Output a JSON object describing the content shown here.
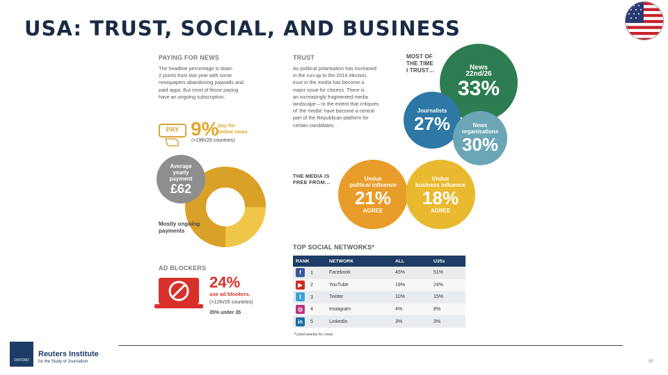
{
  "title": "USA: TRUST, SOCIAL, AND BUSINESS",
  "paying": {
    "heading": "PAYING FOR NEWS",
    "body": [
      "The headline percentage is down",
      "2 points from last year with some",
      "newspapers abandoning paywalls and",
      "paid apps. But most of those paying",
      "have an ongoing subscription."
    ],
    "pay_label": "PAY",
    "pct": "9%",
    "pct_caption": [
      "pay for",
      "online news"
    ],
    "rank": "(=19th/26 countries)",
    "avg_label": [
      "Average",
      "yearly",
      "payment"
    ],
    "avg_value": "£62",
    "ongoing_label": [
      "Mostly ongoing",
      "payments"
    ],
    "ongoing_fraction": 0.75
  },
  "adblock": {
    "heading": "AD BLOCKERS",
    "pct": "24%",
    "caption": "use ad blockers.",
    "rank": "(=12th/26 countries)",
    "under35": "35% under 35"
  },
  "trust": {
    "heading": "TRUST",
    "body": [
      "As political polarisation has increased",
      "in the run-up to the 2016 election,",
      "trust in the media has become a",
      "major issue for citizens. There is",
      "an increasingly fragmented media",
      "landscape – to the extent that critiques",
      "of 'the media' have become a central",
      "part of the Republican platform for",
      "certain candidates."
    ],
    "most_of_time": [
      "MOST OF",
      "THE TIME",
      "I TRUST…"
    ],
    "news": {
      "label": "News",
      "rank": "22nd/26",
      "pct": "33%"
    },
    "journalists": {
      "label": "Journalists",
      "pct": "27%"
    },
    "orgs": {
      "label": [
        "News",
        "organisations"
      ],
      "pct": "30%"
    },
    "free_from": [
      "THE MEDIA IS",
      "FREE FROM…"
    ],
    "political": {
      "label": [
        "Undue",
        "political influence"
      ],
      "pct": "21%",
      "agree": "AGREE"
    },
    "business": {
      "label": [
        "Undue",
        "business influence"
      ],
      "pct": "18%",
      "agree": "AGREE"
    }
  },
  "social": {
    "heading": "TOP SOCIAL NETWORKS*",
    "columns": [
      "RANK",
      "NETWORK",
      "ALL",
      "U35s"
    ],
    "rows": [
      {
        "rank": "1",
        "network": "Facebook",
        "all": "45%",
        "u35": "51%",
        "icon": "f",
        "color": "#3b5998"
      },
      {
        "rank": "2",
        "network": "YouTube",
        "all": "19%",
        "u35": "24%",
        "icon": "▶",
        "color": "#cc2b23"
      },
      {
        "rank": "3",
        "network": "Twitter",
        "all": "10%",
        "u35": "15%",
        "icon": "t",
        "color": "#3fa1d9"
      },
      {
        "rank": "4",
        "network": "Instagram",
        "all": "4%",
        "u35": "8%",
        "icon": "◎",
        "color": "#b8327e"
      },
      {
        "rank": "5",
        "network": "LinkedIn",
        "all": "3%",
        "u35": "3%",
        "icon": "in",
        "color": "#1a6aa1"
      }
    ],
    "footnote": "*Used weekly for news"
  },
  "footer": {
    "logo_text": "OXFORD",
    "institute": "Reuters Institute",
    "subtitle": "for the Study of Journalism",
    "page": "95"
  },
  "colors": {
    "navy": "#1d3d66",
    "gold": "#e0a82e",
    "green": "#2e7d52",
    "blue": "#2e78a5",
    "teal": "#6aa6b6",
    "orange": "#e89c29",
    "yellow": "#e9b92f",
    "red": "#d8302b",
    "grey": "#8e8e8e"
  }
}
